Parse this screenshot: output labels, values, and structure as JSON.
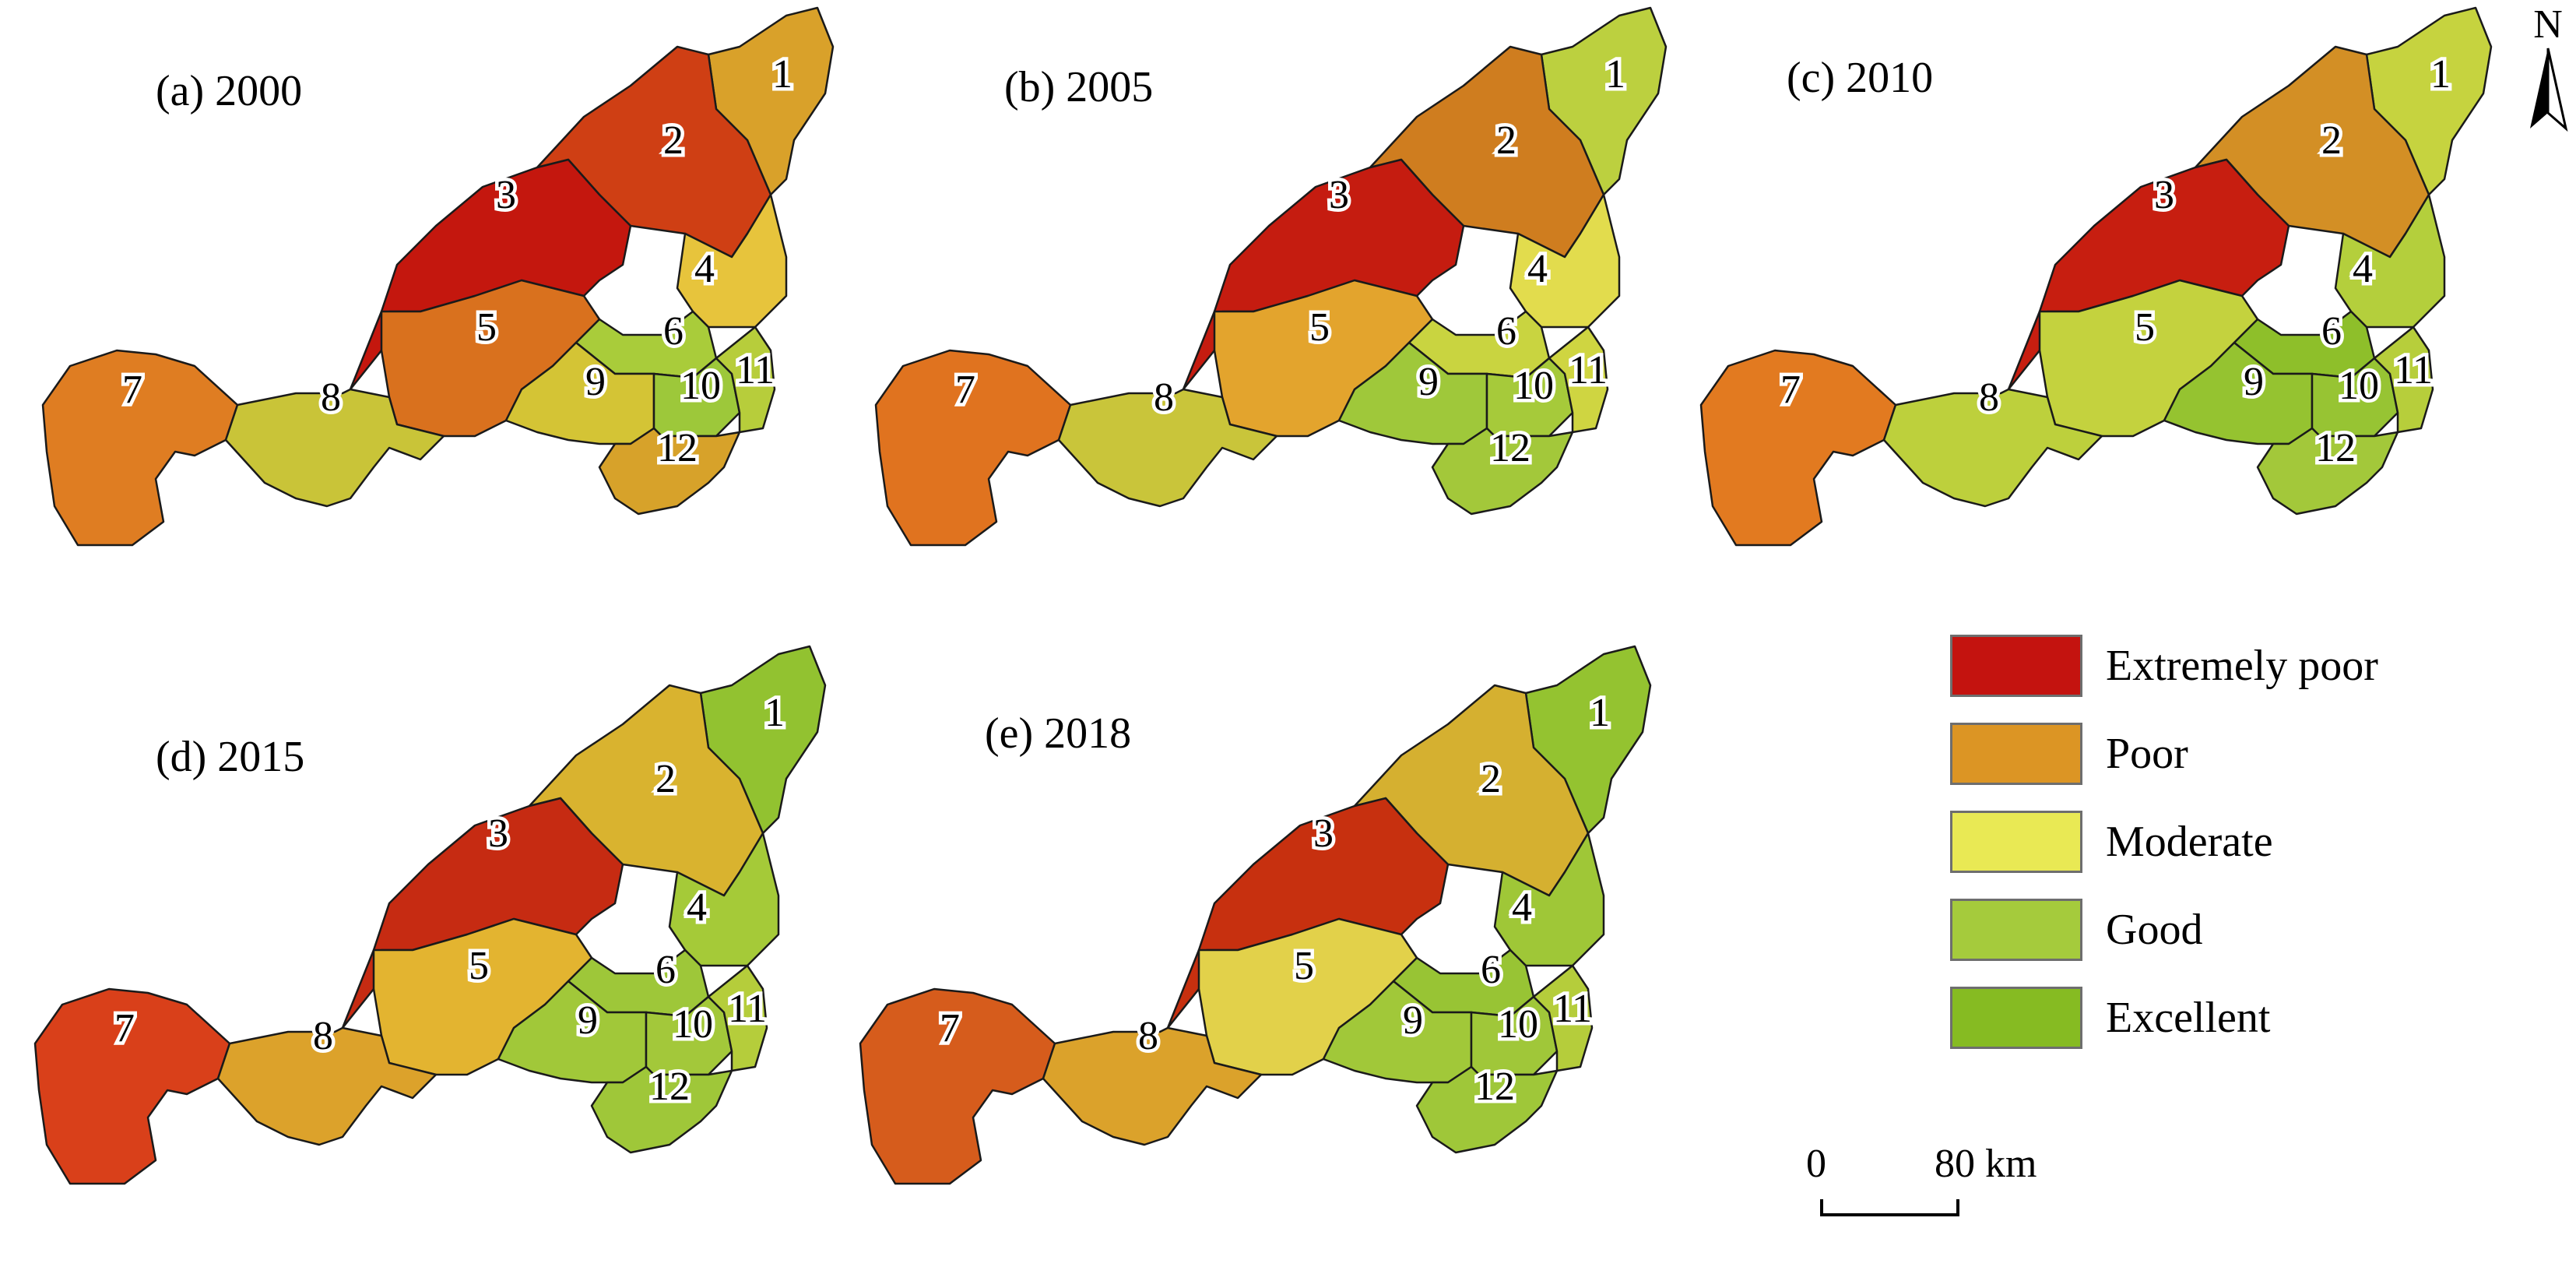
{
  "panels": [
    {
      "title": "(a) 2000",
      "zone_colors": {
        "1": "#d9a12a",
        "2": "#cf3f14",
        "3": "#c4170e",
        "4": "#e7c43c",
        "5": "#d9711e",
        "6": "#a9cc3a",
        "7": "#df7d22",
        "8": "#c9c438",
        "9": "#d4c435",
        "10": "#9dc83a",
        "11": "#b7cd3b",
        "12": "#d7a22a"
      }
    },
    {
      "title": "(b) 2005",
      "zone_colors": {
        "1": "#bcd03f",
        "2": "#cf7d1f",
        "3": "#c51c10",
        "4": "#e2dc4d",
        "5": "#e3a42d",
        "6": "#c9d440",
        "7": "#e0731f",
        "8": "#c9c53a",
        "9": "#9fc83a",
        "10": "#a6ca3a",
        "11": "#cfd541",
        "12": "#a3c83a"
      }
    },
    {
      "title": "(c) 2010",
      "zone_colors": {
        "1": "#c6d33f",
        "2": "#d38f25",
        "3": "#c71e10",
        "4": "#b4cf3c",
        "5": "#c4d23e",
        "6": "#8ebf2a",
        "7": "#e27a20",
        "8": "#bdd03c",
        "9": "#95c330",
        "10": "#97c433",
        "11": "#b7ce3b",
        "12": "#a3c83a"
      }
    },
    {
      "title": "(d) 2015",
      "zone_colors": {
        "1": "#92c230",
        "2": "#d9b32f",
        "3": "#c62b12",
        "4": "#a5ca38",
        "5": "#e3b430",
        "6": "#9ec739",
        "7": "#d9401a",
        "8": "#dca22b",
        "9": "#a1c839",
        "10": "#a3c83a",
        "11": "#b5cd3b",
        "12": "#9fc739"
      }
    },
    {
      "title": "(e) 2018",
      "zone_colors": {
        "1": "#94c330",
        "2": "#d5b030",
        "3": "#c7300f",
        "4": "#9fc737",
        "5": "#e2d14a",
        "6": "#98c434",
        "7": "#d65c1c",
        "8": "#dba22b",
        "9": "#a1c839",
        "10": "#a0c739",
        "11": "#b5cd3b",
        "12": "#9fc739"
      }
    }
  ],
  "zone_labels": [
    "1",
    "2",
    "3",
    "4",
    "5",
    "6",
    "7",
    "8",
    "9",
    "10",
    "11",
    "12"
  ],
  "legend": {
    "items": [
      {
        "label": "Extremely poor",
        "color": "#c4130f"
      },
      {
        "label": "Poor",
        "color": "#dc9524"
      },
      {
        "label": "Moderate",
        "color": "#e9e954"
      },
      {
        "label": "Good",
        "color": "#a5cb3c"
      },
      {
        "label": "Excellent",
        "color": "#86bb22"
      }
    ]
  },
  "scale": {
    "zero": "0",
    "end": "80 km"
  },
  "north_arrow": {
    "label": "N",
    "icon": "north-arrow-icon"
  },
  "colors": {
    "boundary": "#1a1a1a",
    "label_halo": "#ffffff"
  }
}
